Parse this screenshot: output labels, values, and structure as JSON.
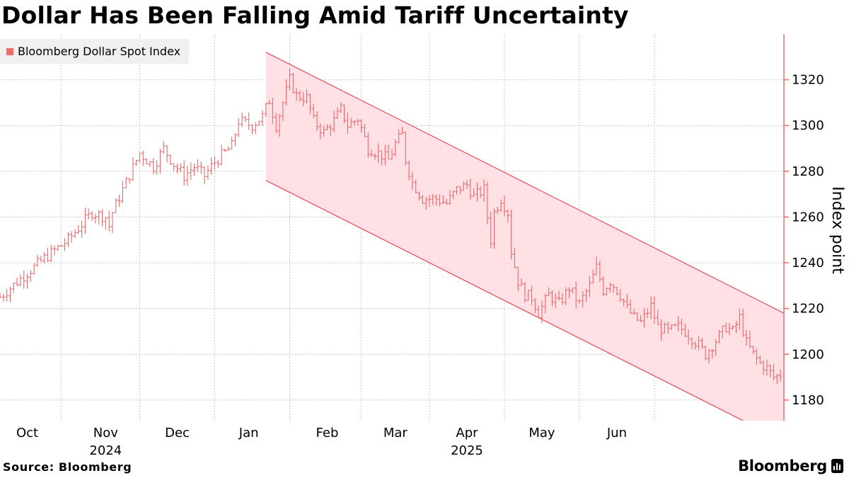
{
  "title": "Dollar Has Been Falling Amid Tariff Uncertainty",
  "legend": {
    "label": "Bloomberg Dollar Spot Index"
  },
  "footer": {
    "source": "Source: Bloomberg",
    "brand": "Bloomberg"
  },
  "colors": {
    "series": "#e8686b",
    "channel_fill": "#ffdce1",
    "channel_line": "#e8485a",
    "axis_line": "#f06a6a",
    "grid": "#c8c8c8"
  },
  "chart_data": {
    "type": "ohlc",
    "title": "Dollar Has Been Falling Amid Tariff Uncertainty",
    "ylabel": "Index point",
    "xlabel": "",
    "ylim": [
      1171,
      1340
    ],
    "yticks": [
      1180,
      1200,
      1220,
      1240,
      1260,
      1280,
      1300,
      1320
    ],
    "xlim": [
      -8,
      222
    ],
    "month_ticks": [
      {
        "label": "Oct",
        "year": "2024",
        "day": 0
      },
      {
        "label": "Nov",
        "year": "",
        "day": 23
      },
      {
        "label": "Dec",
        "year": "",
        "day": 44
      },
      {
        "label": "Jan",
        "year": "",
        "day": 65
      },
      {
        "label": "Feb",
        "year": "2025",
        "day": 88
      },
      {
        "label": "Mar",
        "year": "",
        "day": 108
      },
      {
        "label": "Apr",
        "year": "",
        "day": 129
      },
      {
        "label": "May",
        "year": "",
        "day": 151
      },
      {
        "label": "Jun",
        "year": "",
        "day": 173
      }
    ],
    "year_labels": [
      {
        "label": "2024",
        "day": 23
      },
      {
        "label": "2025",
        "day": 129
      }
    ],
    "gridline_days": [
      -13,
      10,
      33,
      55,
      77,
      98,
      118,
      140,
      162,
      184
    ],
    "channel": {
      "upper": {
        "start": [
          70,
          1332
        ],
        "end": [
          222,
          1218
        ]
      },
      "lower": {
        "start": [
          70,
          1276
        ],
        "end": [
          222,
          1162
        ]
      }
    },
    "series": [
      {
        "name": "Bloomberg Dollar Spot Index",
        "anchors": [
          [
            -8,
            1225
          ],
          [
            -2,
            1233
          ],
          [
            5,
            1242
          ],
          [
            12,
            1250
          ],
          [
            19,
            1262
          ],
          [
            23,
            1260
          ],
          [
            24,
            1256
          ],
          [
            25,
            1262
          ],
          [
            28,
            1272
          ],
          [
            33,
            1288
          ],
          [
            37,
            1282
          ],
          [
            40,
            1290
          ],
          [
            43,
            1283
          ],
          [
            46,
            1278
          ],
          [
            49,
            1282
          ],
          [
            52,
            1278
          ],
          [
            55,
            1284
          ],
          [
            60,
            1291
          ],
          [
            62,
            1302
          ],
          [
            66,
            1300
          ],
          [
            69,
            1304
          ],
          [
            71,
            1311
          ],
          [
            73,
            1300
          ],
          [
            75,
            1310
          ],
          [
            77,
            1320
          ],
          [
            79,
            1313
          ],
          [
            82,
            1312
          ],
          [
            84,
            1302
          ],
          [
            87,
            1297
          ],
          [
            90,
            1302
          ],
          [
            92,
            1307
          ],
          [
            94,
            1300
          ],
          [
            97,
            1303
          ],
          [
            100,
            1290
          ],
          [
            103,
            1288
          ],
          [
            106,
            1285
          ],
          [
            108,
            1292
          ],
          [
            110,
            1296
          ],
          [
            111,
            1285
          ],
          [
            113,
            1275
          ],
          [
            116,
            1268
          ],
          [
            120,
            1268
          ],
          [
            123,
            1266
          ],
          [
            126,
            1272
          ],
          [
            129,
            1274
          ],
          [
            131,
            1269
          ],
          [
            134,
            1272
          ],
          [
            135,
            1260
          ],
          [
            136,
            1250
          ],
          [
            137,
            1262
          ],
          [
            139,
            1268
          ],
          [
            141,
            1262
          ],
          [
            142,
            1245
          ],
          [
            144,
            1232
          ],
          [
            146,
            1226
          ],
          [
            148,
            1225
          ],
          [
            150,
            1218
          ],
          [
            153,
            1226
          ],
          [
            156,
            1222
          ],
          [
            159,
            1229
          ],
          [
            162,
            1222
          ],
          [
            165,
            1230
          ],
          [
            167,
            1238
          ],
          [
            169,
            1228
          ],
          [
            171,
            1232
          ],
          [
            174,
            1226
          ],
          [
            176,
            1220
          ],
          [
            178,
            1216
          ],
          [
            180,
            1214
          ],
          [
            183,
            1221
          ],
          [
            185,
            1212
          ],
          [
            188,
            1210
          ],
          [
            191,
            1212
          ],
          [
            193,
            1210
          ],
          [
            195,
            1207
          ],
          [
            197,
            1204
          ],
          [
            199,
            1200
          ],
          [
            201,
            1204
          ],
          [
            203,
            1208
          ],
          [
            205,
            1212
          ],
          [
            207,
            1210
          ],
          [
            209,
            1216
          ],
          [
            211,
            1205
          ],
          [
            213,
            1200
          ],
          [
            215,
            1196
          ],
          [
            217,
            1194
          ],
          [
            219,
            1190
          ],
          [
            221,
            1191
          ]
        ]
      }
    ]
  }
}
